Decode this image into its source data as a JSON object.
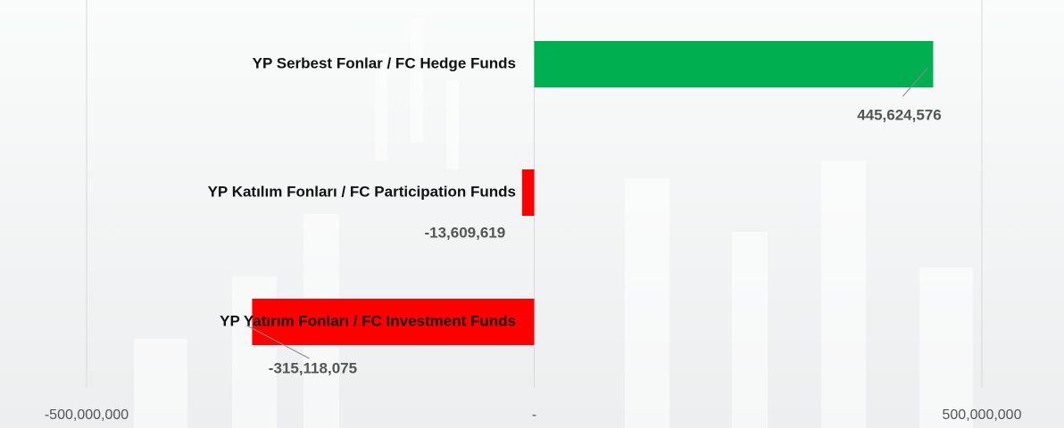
{
  "chart_data": {
    "type": "bar",
    "orientation": "horizontal",
    "categories": [
      "YP Serbest Fonlar / FC Hedge Funds",
      "YP Katılım Fonları / FC Participation Funds",
      "YP Yatırım Fonları / FC Investment Funds"
    ],
    "values": [
      445624576,
      -13609619,
      -315118075
    ],
    "value_labels": [
      "445,624,576",
      "-13,609,619",
      "-315,118,075"
    ],
    "colors": [
      "#00b050",
      "#ff0000",
      "#ff0000"
    ],
    "xlim": [
      -500000000,
      500000000
    ],
    "xticks": [
      {
        "value": -500000000,
        "label": "-500,000,000"
      },
      {
        "value": 0,
        "label": "-"
      },
      {
        "value": 500000000,
        "label": "500,000,000"
      }
    ],
    "grid": true
  }
}
